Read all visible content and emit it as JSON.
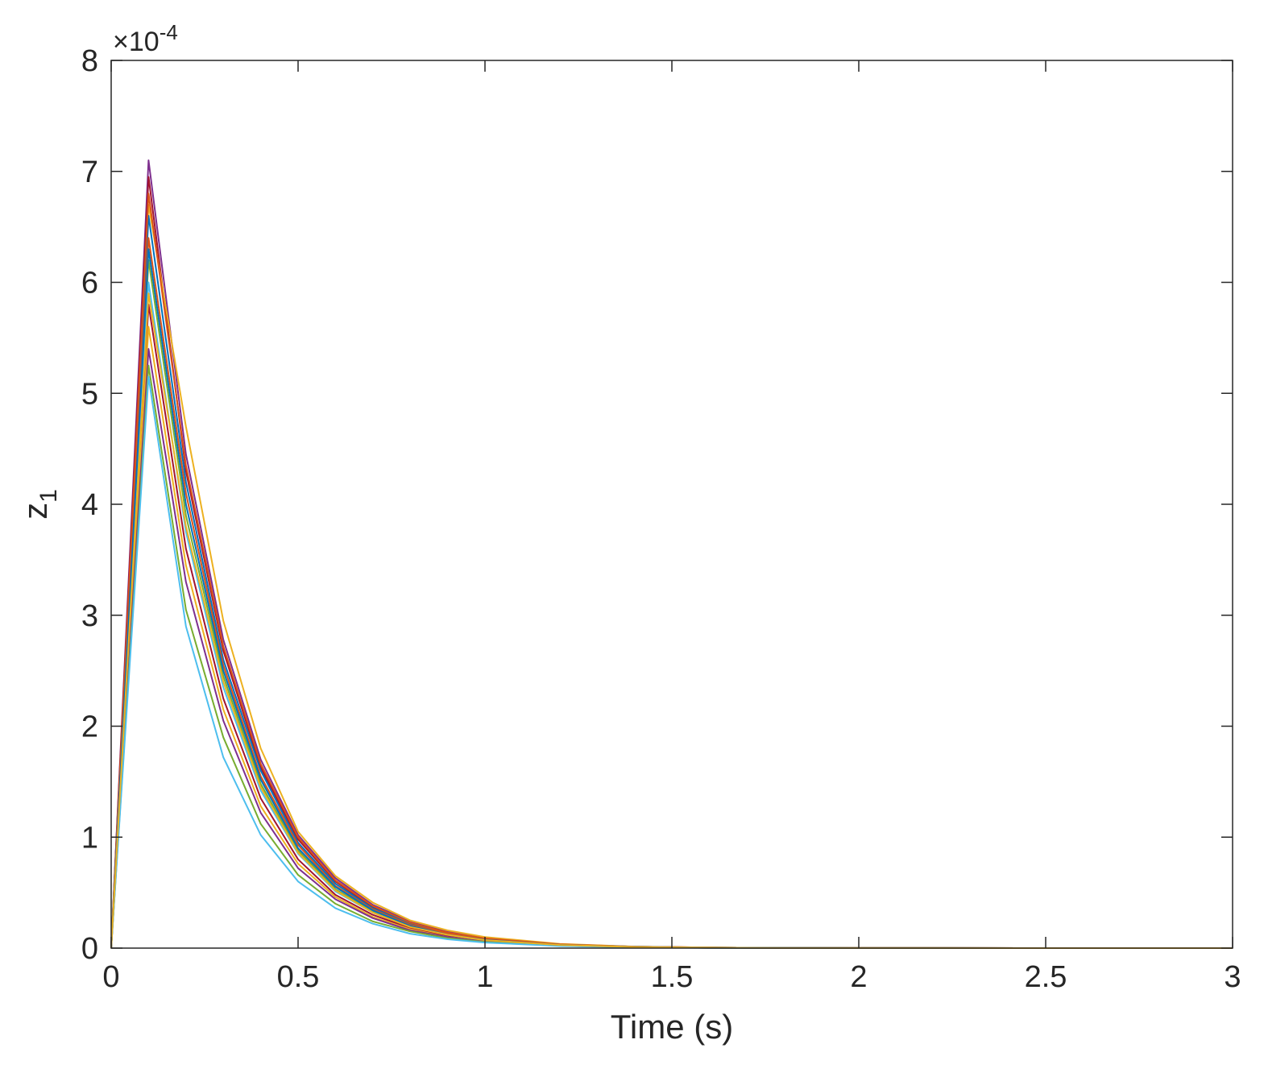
{
  "chart_data": {
    "type": "line",
    "title": "",
    "xlabel": "Time (s)",
    "ylabel": "z",
    "ylabel_subscript": "1",
    "y_exponent_prefix": "×10",
    "y_exponent": "-4",
    "xlim": [
      0,
      3
    ],
    "ylim": [
      0,
      8
    ],
    "x_ticks": [
      "0",
      "0.5",
      "1",
      "1.5",
      "2",
      "2.5",
      "3"
    ],
    "y_ticks": [
      "0",
      "1",
      "2",
      "3",
      "4",
      "5",
      "6",
      "7",
      "8"
    ],
    "grid": false,
    "legend": "none",
    "x": [
      0,
      0.1,
      0.2,
      0.3,
      0.4,
      0.5,
      0.6,
      0.7,
      0.8,
      0.9,
      1.0,
      1.2,
      1.4,
      1.6,
      1.8,
      2.0,
      2.5,
      3.0
    ],
    "series": [
      {
        "color": "#7E2F8E",
        "values": [
          0,
          7.1,
          4.45,
          2.78,
          1.7,
          1.02,
          0.63,
          0.39,
          0.24,
          0.15,
          0.09,
          0.035,
          0.013,
          0.005,
          0.002,
          0.001,
          0,
          0
        ]
      },
      {
        "color": "#A2142F",
        "values": [
          0,
          6.95,
          4.3,
          2.68,
          1.63,
          0.98,
          0.6,
          0.37,
          0.23,
          0.14,
          0.085,
          0.033,
          0.012,
          0.005,
          0.002,
          0.001,
          0,
          0
        ]
      },
      {
        "color": "#EDB120",
        "values": [
          0,
          6.7,
          4.7,
          2.95,
          1.8,
          1.05,
          0.65,
          0.41,
          0.25,
          0.16,
          0.1,
          0.038,
          0.014,
          0.005,
          0.002,
          0.001,
          0,
          0
        ]
      },
      {
        "color": "#0072BD",
        "values": [
          0,
          6.6,
          4.2,
          2.6,
          1.6,
          0.95,
          0.58,
          0.36,
          0.22,
          0.13,
          0.08,
          0.031,
          0.012,
          0.004,
          0.002,
          0.001,
          0,
          0
        ]
      },
      {
        "color": "#D95319",
        "values": [
          0,
          6.4,
          4.1,
          2.55,
          1.55,
          0.93,
          0.56,
          0.35,
          0.21,
          0.13,
          0.078,
          0.03,
          0.011,
          0.004,
          0.002,
          0.001,
          0,
          0
        ]
      },
      {
        "color": "#77AC30",
        "values": [
          0,
          6.2,
          3.9,
          2.45,
          1.48,
          0.88,
          0.53,
          0.33,
          0.2,
          0.12,
          0.074,
          0.028,
          0.01,
          0.004,
          0.002,
          0.001,
          0,
          0
        ]
      },
      {
        "color": "#4DBEEE",
        "values": [
          0,
          6.0,
          3.75,
          2.35,
          1.42,
          0.85,
          0.51,
          0.32,
          0.19,
          0.12,
          0.07,
          0.027,
          0.01,
          0.004,
          0.001,
          0.001,
          0,
          0
        ]
      },
      {
        "color": "#A2142F",
        "values": [
          0,
          5.8,
          3.6,
          2.25,
          1.35,
          0.8,
          0.48,
          0.3,
          0.18,
          0.11,
          0.067,
          0.026,
          0.009,
          0.003,
          0.001,
          0.001,
          0,
          0
        ]
      },
      {
        "color": "#EDB120",
        "values": [
          0,
          5.6,
          3.45,
          2.15,
          1.28,
          0.76,
          0.46,
          0.28,
          0.17,
          0.1,
          0.063,
          0.024,
          0.009,
          0.003,
          0.001,
          0,
          0,
          0
        ]
      },
      {
        "color": "#7E2F8E",
        "values": [
          0,
          5.4,
          3.3,
          2.05,
          1.22,
          0.72,
          0.44,
          0.27,
          0.16,
          0.1,
          0.06,
          0.023,
          0.008,
          0.003,
          0.001,
          0,
          0,
          0
        ]
      },
      {
        "color": "#77AC30",
        "values": [
          0,
          5.25,
          3.05,
          1.9,
          1.12,
          0.66,
          0.4,
          0.24,
          0.15,
          0.09,
          0.055,
          0.021,
          0.008,
          0.003,
          0.001,
          0,
          0,
          0
        ]
      },
      {
        "color": "#4DBEEE",
        "values": [
          0,
          5.15,
          2.9,
          1.72,
          1.02,
          0.6,
          0.36,
          0.22,
          0.13,
          0.08,
          0.05,
          0.019,
          0.007,
          0.002,
          0.001,
          0,
          0,
          0
        ]
      },
      {
        "color": "#D95319",
        "values": [
          0,
          6.8,
          4.35,
          2.72,
          1.66,
          1.0,
          0.61,
          0.38,
          0.23,
          0.14,
          0.088,
          0.034,
          0.012,
          0.005,
          0.002,
          0.001,
          0,
          0
        ]
      },
      {
        "color": "#0072BD",
        "values": [
          0,
          6.3,
          4.0,
          2.5,
          1.52,
          0.9,
          0.55,
          0.34,
          0.2,
          0.12,
          0.075,
          0.029,
          0.011,
          0.004,
          0.002,
          0.001,
          0,
          0
        ]
      },
      {
        "color": "#EDB120",
        "values": [
          0,
          5.9,
          3.8,
          2.4,
          1.45,
          0.86,
          0.52,
          0.32,
          0.19,
          0.12,
          0.072,
          0.028,
          0.01,
          0.004,
          0.001,
          0.001,
          0,
          0
        ]
      }
    ]
  }
}
